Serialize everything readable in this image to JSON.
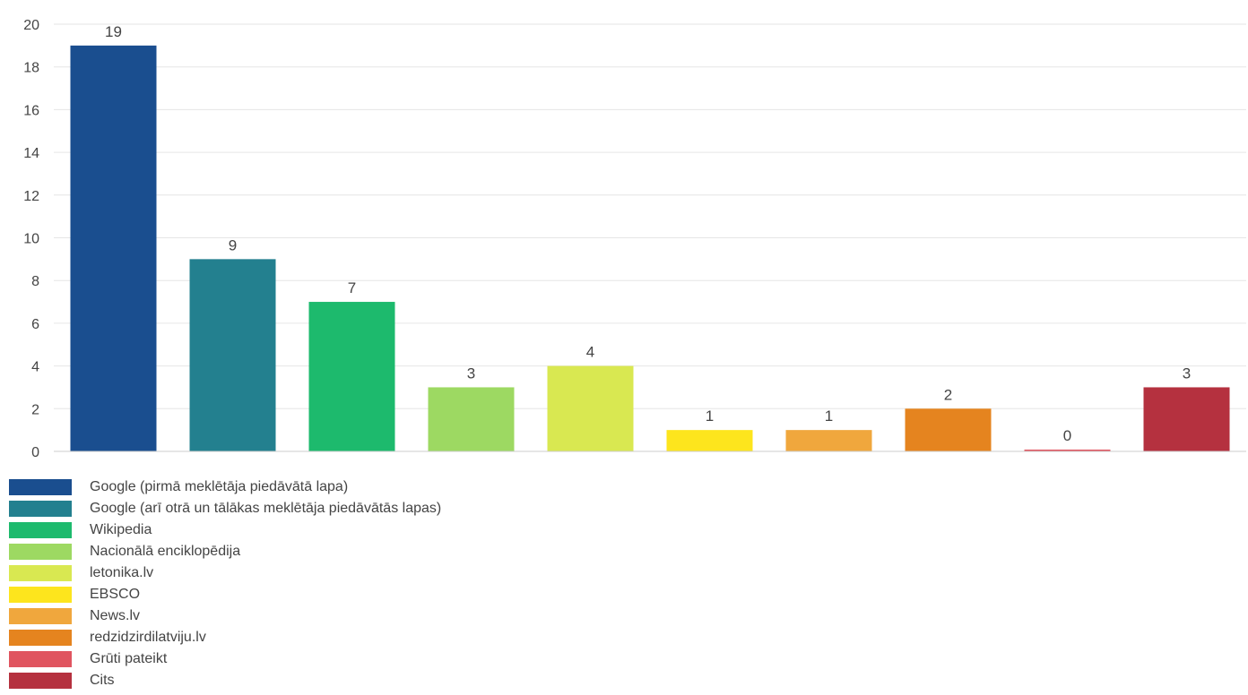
{
  "chart_data": {
    "type": "bar",
    "categories": [
      "Google (pirmā meklētāja piedāvātā lapa)",
      "Google (arī otrā un tālākas meklētāja piedāvātās lapas)",
      "Wikipedia",
      "Nacionālā enciklopēdija",
      "letonika.lv",
      "EBSCO",
      "News.lv",
      "redzidzirdilatviju.lv",
      "Grūti pateikt",
      "Cits"
    ],
    "values": [
      19,
      9,
      7,
      3,
      4,
      1,
      1,
      2,
      0,
      3
    ],
    "value_labels": [
      "19",
      "9",
      "7",
      "3",
      "4",
      "1",
      "1",
      "2",
      "0",
      "3"
    ],
    "colors": [
      "#1a4e8f",
      "#23808f",
      "#1dba6d",
      "#9dd962",
      "#d9e851",
      "#fde51d",
      "#f0a73d",
      "#e5841f",
      "#e05560",
      "#b5313f"
    ],
    "ylim": [
      0,
      20
    ],
    "yticks": [
      "0",
      "2",
      "4",
      "6",
      "8",
      "10",
      "12",
      "14",
      "16",
      "18",
      "20"
    ],
    "title": "",
    "xlabel": "",
    "ylabel": "",
    "grid": true,
    "legend_position": "bottom-left"
  }
}
